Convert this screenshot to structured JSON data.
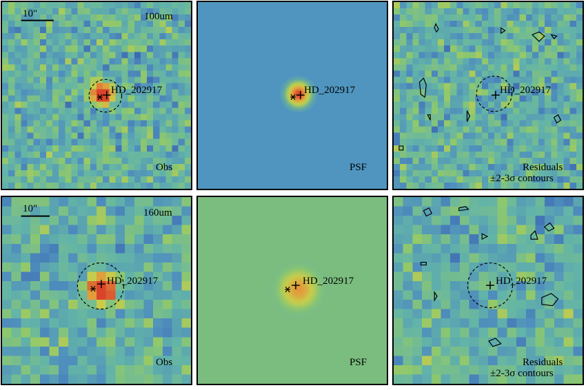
{
  "figure": {
    "rows": [
      {
        "band": "100um",
        "panels": [
          {
            "kind": "obs",
            "label": "Obs",
            "band_label": "100um",
            "scale_label": "10\"",
            "source": "HD_202917"
          },
          {
            "kind": "psf",
            "label": "PSF",
            "source": "HD_202917"
          },
          {
            "kind": "residuals",
            "label": "Residuals",
            "contour_label": "±2-3σ contours",
            "source": "HD_202917"
          }
        ]
      },
      {
        "band": "160um",
        "panels": [
          {
            "kind": "obs",
            "label": "Obs",
            "band_label": "160um",
            "scale_label": "10\"",
            "source": "HD_202917"
          },
          {
            "kind": "psf",
            "label": "PSF",
            "source": "HD_202917"
          },
          {
            "kind": "residuals",
            "label": "Residuals",
            "contour_label": "±2-3σ contours",
            "source": "HD_202917"
          }
        ]
      }
    ],
    "colors": {
      "colormap": [
        "#2c1a5c",
        "#3a63b0",
        "#4f8fbd",
        "#63b4a8",
        "#8ec86d",
        "#c9cc4a",
        "#e39a3c",
        "#d9442c"
      ],
      "psf_bg_100": "#4f95bf",
      "psf_bg_160": "#7bbc7f",
      "frame": "#000000"
    }
  }
}
